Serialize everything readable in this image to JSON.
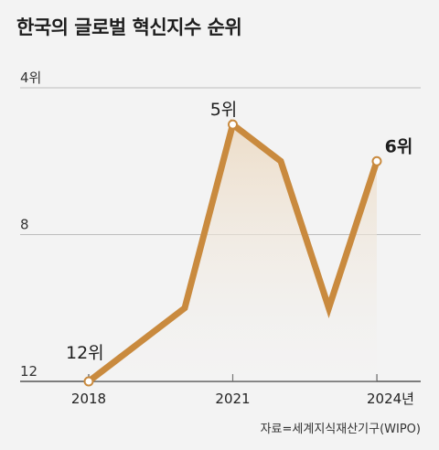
{
  "chart_data": {
    "type": "line",
    "title": "한국의 글로벌 혁신지수 순위",
    "source": "자료=세계지식재산기구(WIPO)",
    "x_ticks": [
      "2018",
      "2021",
      "2024년"
    ],
    "y_ticks": [
      "4위",
      "8",
      "12"
    ],
    "y_tick_values": [
      4,
      8,
      12
    ],
    "ylim": [
      4,
      12
    ],
    "y_inverted": true,
    "series": [
      {
        "x": [
          2018,
          2019,
          2020,
          2021,
          2022,
          2023,
          2024
        ],
        "values": [
          12,
          11,
          10,
          5,
          6,
          10,
          6
        ]
      }
    ],
    "point_labels": [
      {
        "text": "12위",
        "x": 2018
      },
      {
        "text": "5위",
        "x": 2021
      },
      {
        "text": "6위",
        "x": 2024
      }
    ],
    "colors": {
      "line": "#c98a3e",
      "area": "#f0e3d2",
      "grid": "#bdbdbd",
      "axis": "#555555",
      "background": "#f3f3f3"
    }
  }
}
